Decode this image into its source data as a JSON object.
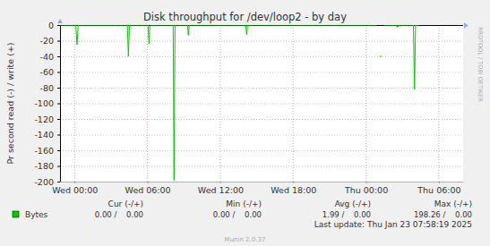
{
  "chart_data": {
    "type": "line",
    "title": "Disk throughput for /dev/loop2 - by day",
    "y_label": "Pr second read (-) / write (+)",
    "x": [
      -1.2,
      0.1,
      0.2,
      0.3,
      4.35,
      4.43,
      4.52,
      6.05,
      6.13,
      6.2,
      6.3,
      8.12,
      8.19,
      8.27,
      9.3,
      9.37,
      9.45,
      14.1,
      14.17,
      14.25,
      14.85,
      14.92,
      15.0,
      24.9,
      25.0,
      25.1,
      25.3,
      25.4,
      25.5,
      26.5,
      26.6,
      26.7,
      27.9,
      28.0,
      28.08,
      28.35
    ],
    "series": [
      {
        "name": "Bytes",
        "color": "#00cc00",
        "values": [
          0,
          0,
          -25,
          0,
          0,
          -40,
          0,
          0,
          -24,
          -2,
          0,
          0,
          -198.26,
          0,
          0,
          -13,
          0,
          0,
          -12,
          0,
          0,
          -1,
          0,
          0,
          null,
          -40,
          -40,
          null,
          0,
          0,
          -3,
          0,
          0,
          -82,
          0,
          0
        ]
      }
    ],
    "xlim": [
      -1.2,
      32
    ],
    "xticks": [
      {
        "value": 0,
        "label": "Wed 00:00"
      },
      {
        "value": 6,
        "label": "Wed 06:00"
      },
      {
        "value": 12,
        "label": "Wed 12:00"
      },
      {
        "value": 18,
        "label": "Wed 18:00"
      },
      {
        "value": 24,
        "label": "Thu 00:00"
      },
      {
        "value": 30,
        "label": "Thu 06:00"
      }
    ],
    "ylim": [
      -200,
      0
    ],
    "yticks": [
      0,
      -20,
      -40,
      -60,
      -80,
      -100,
      -120,
      -140,
      -160,
      -180,
      -200
    ],
    "grid": true,
    "legend": "bottom",
    "legend_stats": {
      "headers": [
        "Cur (-/+)",
        "Min (-/+)",
        "Avg (-/+)",
        "Max (-/+)"
      ],
      "values": [
        "0.00 /    0.00",
        "0.00 /    0.00",
        "1.99 /    0.00",
        "198.26 /    0.00"
      ]
    },
    "annotations": [
      "RRDTOOL / TOBI OETIKER",
      "Last update: Thu Jan 23 07:58:19 2025",
      "Munin 2.0.37"
    ]
  }
}
